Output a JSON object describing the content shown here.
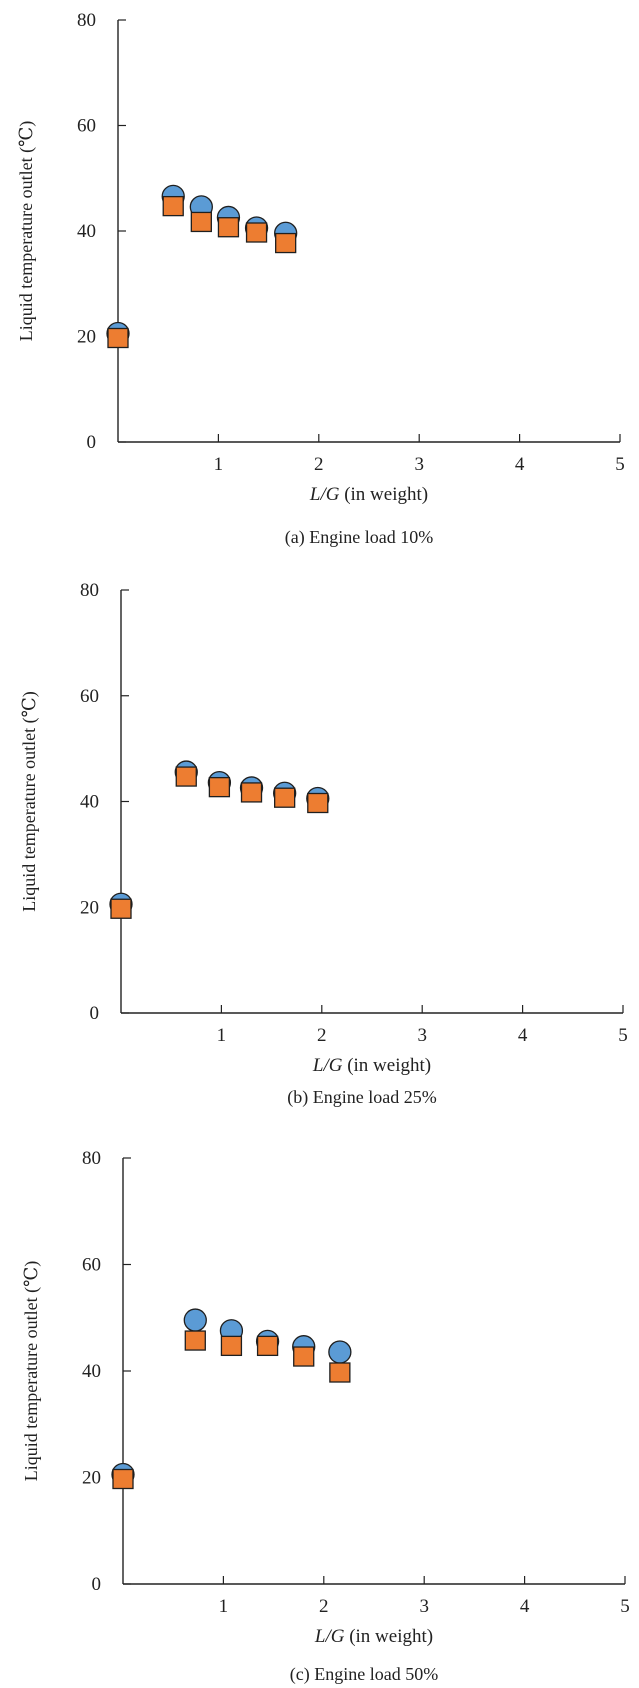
{
  "chart_data": [
    {
      "type": "scatter",
      "caption": "(a) Engine load 10%",
      "ylabel": "Liquid temperature outlet (℃)",
      "xlabel": "L/G (in weight)",
      "xlabel_italic": "L/G",
      "xlabel_rest": " (in weight)",
      "xlim": [
        0,
        5
      ],
      "ylim": [
        0,
        80
      ],
      "xticks": [
        "1",
        "2",
        "3",
        "4",
        "5"
      ],
      "yticks": [
        "0",
        "20",
        "40",
        "60",
        "80"
      ],
      "series": [
        {
          "marker": "circle",
          "color": "#5b9bd5",
          "x": [
            0,
            0.55,
            0.83,
            1.1,
            1.38,
            1.67
          ],
          "y": [
            20,
            46,
            44,
            42,
            40,
            39
          ]
        },
        {
          "marker": "square",
          "color": "#ed7d31",
          "x": [
            0,
            0.55,
            0.83,
            1.1,
            1.38,
            1.67
          ],
          "y": [
            20,
            45,
            42,
            41,
            40,
            38
          ]
        }
      ]
    },
    {
      "type": "scatter",
      "caption": "(b) Engine load 25%",
      "ylabel": "Liquid temperature outlet (℃)",
      "xlabel": "L/G (in weight)",
      "xlabel_italic": "L/G",
      "xlabel_rest": " (in weight)",
      "xlim": [
        0,
        5
      ],
      "ylim": [
        0,
        80
      ],
      "xticks": [
        "1",
        "2",
        "3",
        "4",
        "5"
      ],
      "yticks": [
        "0",
        "20",
        "40",
        "60",
        "80"
      ],
      "series": [
        {
          "marker": "circle",
          "color": "#5b9bd5",
          "x": [
            0,
            0.65,
            0.98,
            1.3,
            1.63,
            1.96
          ],
          "y": [
            20,
            45,
            43,
            42,
            41,
            40
          ]
        },
        {
          "marker": "square",
          "color": "#ed7d31",
          "x": [
            0,
            0.65,
            0.98,
            1.3,
            1.63,
            1.96
          ],
          "y": [
            20,
            45,
            43,
            42,
            41,
            40
          ]
        }
      ]
    },
    {
      "type": "scatter",
      "caption": "(c) Engine load 50%",
      "ylabel": "Liquid temperature outlet (℃)",
      "xlabel": "L/G (in weight)",
      "xlabel_italic": "L/G",
      "xlabel_rest": " (in weight)",
      "xlim": [
        0,
        5
      ],
      "ylim": [
        0,
        80
      ],
      "xticks": [
        "1",
        "2",
        "3",
        "4",
        "5"
      ],
      "yticks": [
        "0",
        "20",
        "40",
        "60",
        "80"
      ],
      "series": [
        {
          "marker": "circle",
          "color": "#5b9bd5",
          "x": [
            0,
            0.72,
            1.08,
            1.44,
            1.8,
            2.16
          ],
          "y": [
            20,
            49,
            47,
            45,
            44,
            43
          ]
        },
        {
          "marker": "square",
          "color": "#ed7d31",
          "x": [
            0,
            0.72,
            1.08,
            1.44,
            1.8,
            2.16
          ],
          "y": [
            20,
            46,
            45,
            45,
            43,
            40
          ]
        }
      ]
    }
  ]
}
